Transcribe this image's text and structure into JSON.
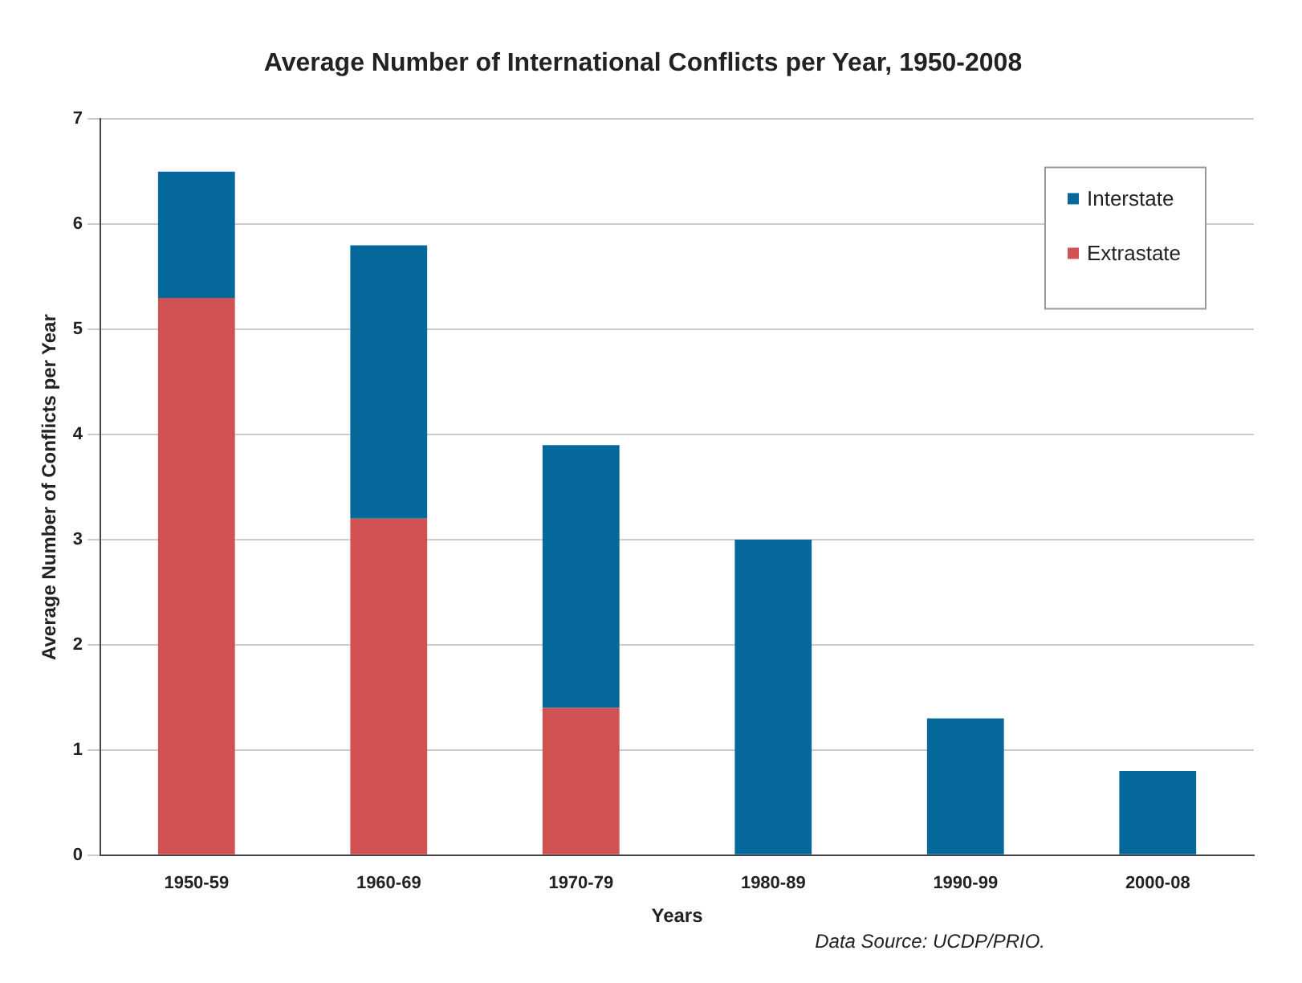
{
  "chart_data": {
    "type": "bar",
    "title": "Average Number of International Conflicts per Year, 1950-2008",
    "xlabel": "Years",
    "ylabel": "Average Number of Conflicts per Year",
    "categories": [
      "1950-59",
      "1960-69",
      "1970-79",
      "1980-89",
      "1990-99",
      "2000-08"
    ],
    "series": [
      {
        "name": "Extrastate",
        "color": "#d05252",
        "values": [
          5.3,
          3.2,
          1.4,
          0,
          0,
          0
        ]
      },
      {
        "name": "Interstate",
        "color": "#05689a",
        "values": [
          1.2,
          2.6,
          2.5,
          3.0,
          1.3,
          0.8
        ]
      }
    ],
    "stacked": true,
    "ylim": [
      0,
      7
    ],
    "yticks": [
      0,
      1,
      2,
      3,
      4,
      5,
      6,
      7
    ],
    "grid": "y",
    "legend": "top right",
    "annotations": [
      "Data Source: UCDP/PRIO."
    ]
  }
}
